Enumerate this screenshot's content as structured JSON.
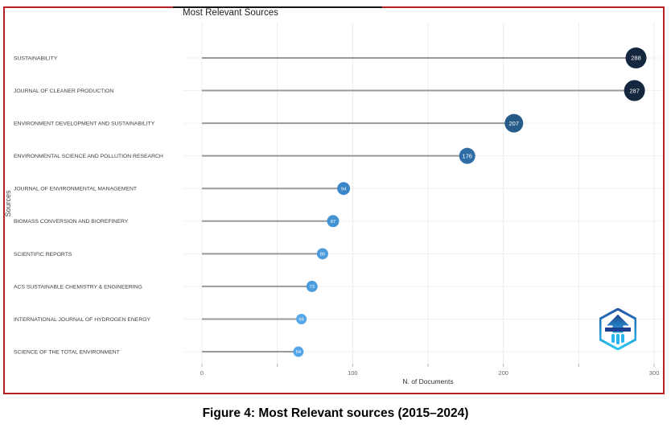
{
  "figure": {
    "caption": "Figure 4: Most Relevant sources (2015–2024)",
    "border_color": "#b92025"
  },
  "chart_data": {
    "type": "scatter",
    "variant": "horizontal-lollipop",
    "title": "Most Relevant Sources",
    "xlabel": "N. of Documents",
    "ylabel": "Sources",
    "xlim": [
      0,
      300
    ],
    "x_tick_labels": [
      0,
      100,
      200,
      300
    ],
    "x_minor_tick_step": 50,
    "grid": true,
    "legend": "none",
    "categories": [
      "SUSTAINABILITY",
      "JOURNAL OF CLEANER PRODUCTION",
      "ENVIRONMENT DEVELOPMENT AND SUSTAINABILITY",
      "ENVIRONMENTAL SCIENCE AND POLLUTION RESEARCH",
      "JOURNAL OF ENVIRONMENTAL MANAGEMENT",
      "BIOMASS CONVERSION AND BIOREFINERY",
      "SCIENTIFIC REPORTS",
      "ACS SUSTAINABLE CHEMISTRY & ENGINEERING",
      "INTERNATIONAL JOURNAL OF HYDROGEN ENERGY",
      "SCIENCE OF THE TOTAL ENVIRONMENT"
    ],
    "values": [
      288,
      287,
      207,
      176,
      94,
      87,
      80,
      73,
      66,
      64
    ],
    "point_colors": [
      "#14273e",
      "#14273e",
      "#265a88",
      "#2e6da6",
      "#3b86c8",
      "#4392d4",
      "#4b9cde",
      "#4b9cde",
      "#55a6e8",
      "#55a6e8"
    ],
    "point_radii": [
      13,
      13,
      11.5,
      10,
      8,
      7.5,
      7,
      7,
      6.5,
      6.5
    ],
    "stem_color": "#999999",
    "gridline_color": "#ececec",
    "row_gridline_color": "#f1f1f1",
    "tick_color": "#b5b5b5",
    "tick_label_color": "#666666",
    "category_label_color": "#3d3d3d",
    "value_label_color": "#ffffff"
  }
}
